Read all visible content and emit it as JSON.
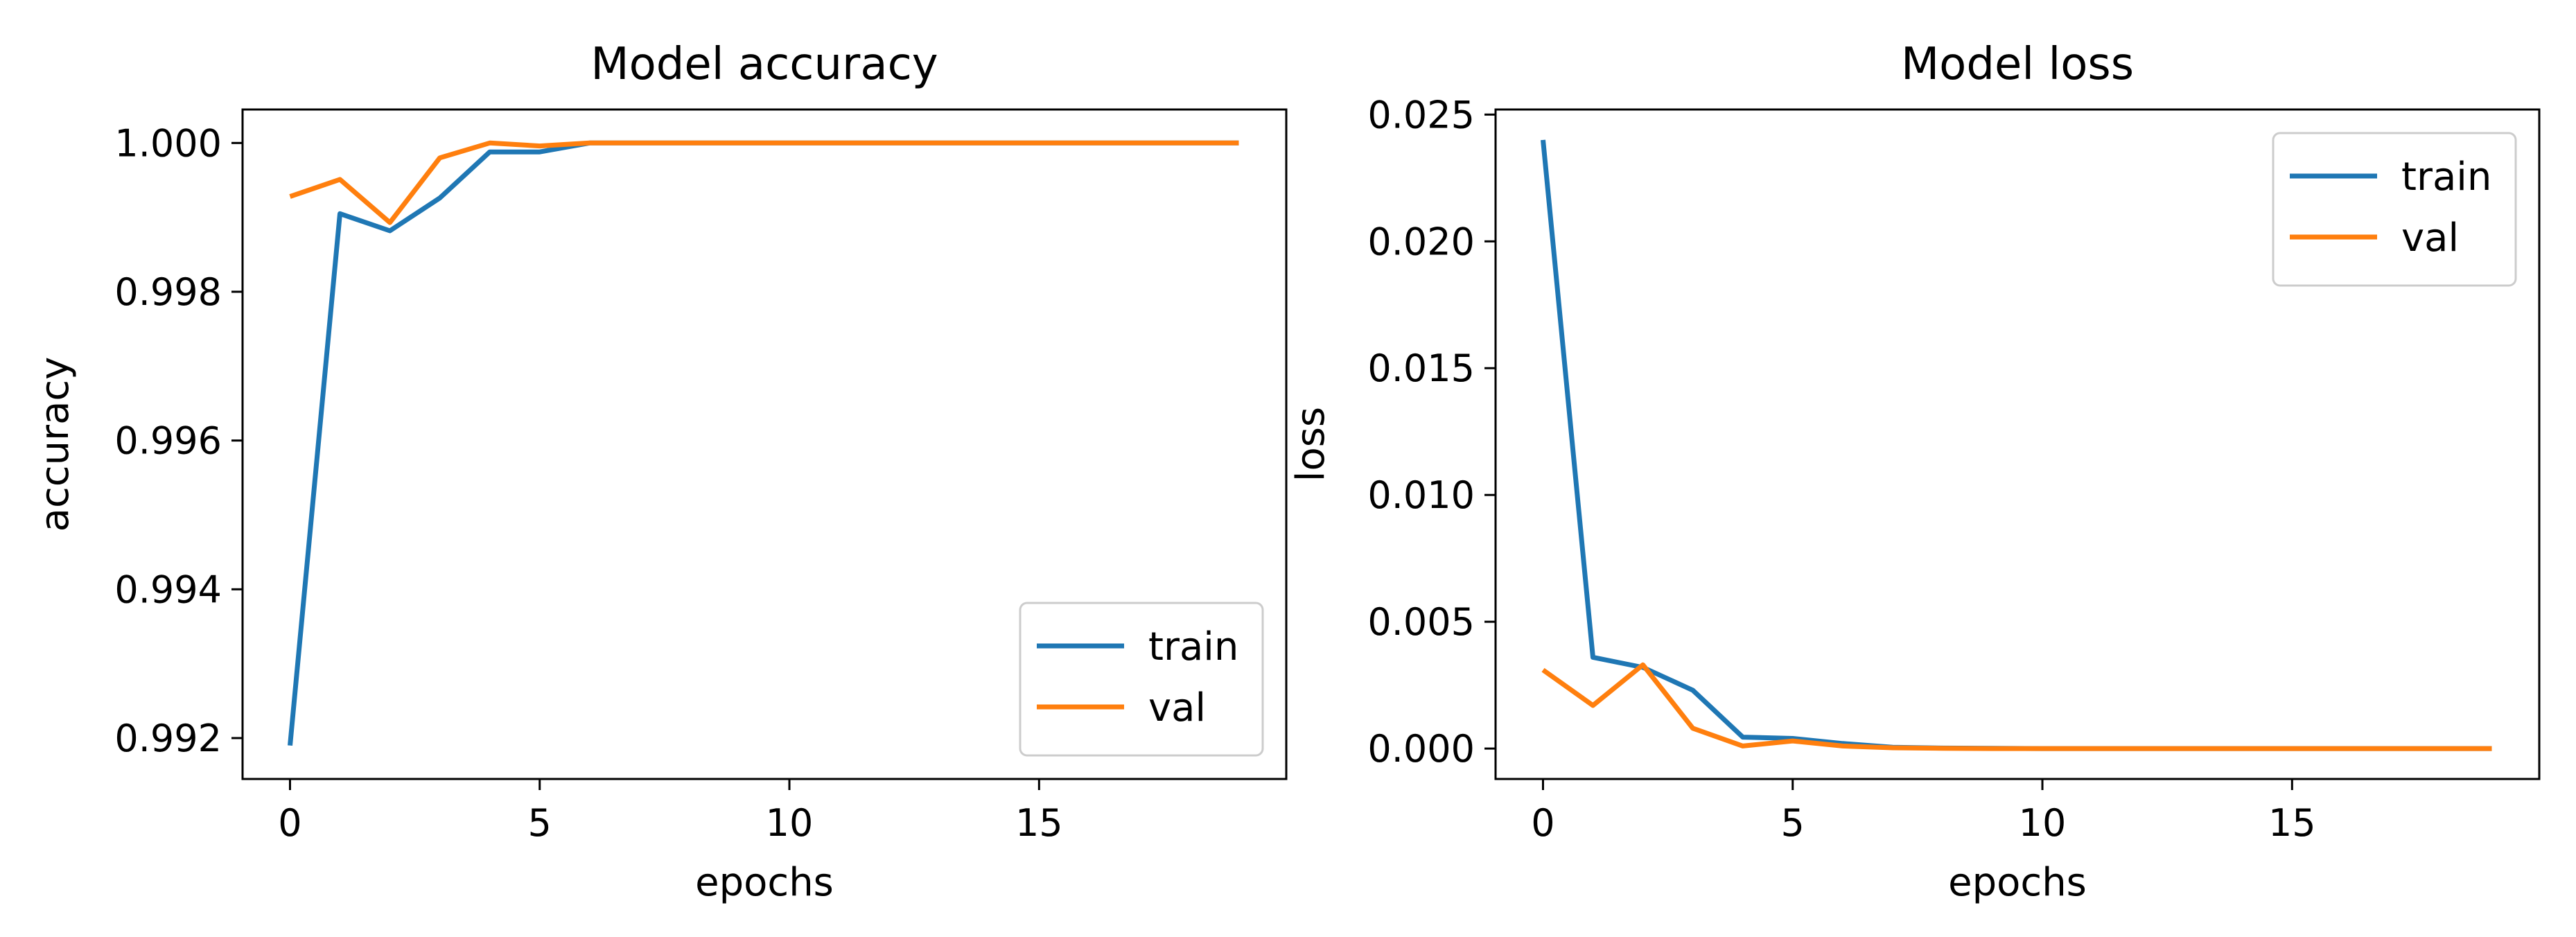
{
  "chart_data": [
    {
      "type": "line",
      "title": "Model accuracy",
      "xlabel": "epochs",
      "ylabel": "accuracy",
      "xlim": [
        -0.95,
        19.95
      ],
      "ylim": [
        0.99145,
        1.00045
      ],
      "xticks": [
        0,
        5,
        10,
        15
      ],
      "xtick_labels": [
        "0",
        "5",
        "10",
        "15"
      ],
      "yticks": [
        0.992,
        0.994,
        0.996,
        0.998,
        1.0
      ],
      "ytick_labels": [
        "0.992",
        "0.994",
        "0.996",
        "0.998",
        "1.000"
      ],
      "grid": false,
      "legend_position": "lower-right",
      "x": [
        0,
        1,
        2,
        3,
        4,
        5,
        6,
        7,
        8,
        9,
        10,
        11,
        12,
        13,
        14,
        15,
        16,
        17,
        18,
        19
      ],
      "series": [
        {
          "name": "train",
          "color": "#1f77b4",
          "values": [
            0.9919,
            0.99905,
            0.99882,
            0.99926,
            0.99988,
            0.99988,
            1.0,
            1.0,
            1.0,
            1.0,
            1.0,
            1.0,
            1.0,
            1.0,
            1.0,
            1.0,
            1.0,
            1.0,
            1.0,
            1.0
          ]
        },
        {
          "name": "val",
          "color": "#ff7f0e",
          "values": [
            0.99928,
            0.99951,
            0.99893,
            0.9998,
            1.0,
            0.99996,
            1.0,
            1.0,
            1.0,
            1.0,
            1.0,
            1.0,
            1.0,
            1.0,
            1.0,
            1.0,
            1.0,
            1.0,
            1.0,
            1.0
          ]
        }
      ]
    },
    {
      "type": "line",
      "title": "Model loss",
      "xlabel": "epochs",
      "ylabel": "loss",
      "xlim": [
        -0.95,
        19.95
      ],
      "ylim": [
        -0.0012,
        0.0252
      ],
      "xticks": [
        0,
        5,
        10,
        15
      ],
      "xtick_labels": [
        "0",
        "5",
        "10",
        "15"
      ],
      "yticks": [
        0.0,
        0.005,
        0.01,
        0.015,
        0.02,
        0.025
      ],
      "ytick_labels": [
        "0.000",
        "0.005",
        "0.010",
        "0.015",
        "0.020",
        "0.025"
      ],
      "grid": false,
      "legend_position": "upper-right",
      "x": [
        0,
        1,
        2,
        3,
        4,
        5,
        6,
        7,
        8,
        9,
        10,
        11,
        12,
        13,
        14,
        15,
        16,
        17,
        18,
        19
      ],
      "series": [
        {
          "name": "train",
          "color": "#1f77b4",
          "values": [
            0.024,
            0.0036,
            0.0032,
            0.0023,
            0.00045,
            0.0004,
            0.0002,
            5e-05,
            2e-05,
            1e-05,
            0,
            0,
            0,
            0,
            0,
            0,
            0,
            0,
            0,
            0
          ]
        },
        {
          "name": "val",
          "color": "#ff7f0e",
          "values": [
            0.0031,
            0.0017,
            0.0033,
            0.0008,
            0.0001,
            0.0003,
            0.0001,
            3e-05,
            1e-05,
            0,
            0,
            0,
            0,
            0,
            0,
            0,
            0,
            0,
            0,
            0
          ]
        }
      ]
    }
  ]
}
